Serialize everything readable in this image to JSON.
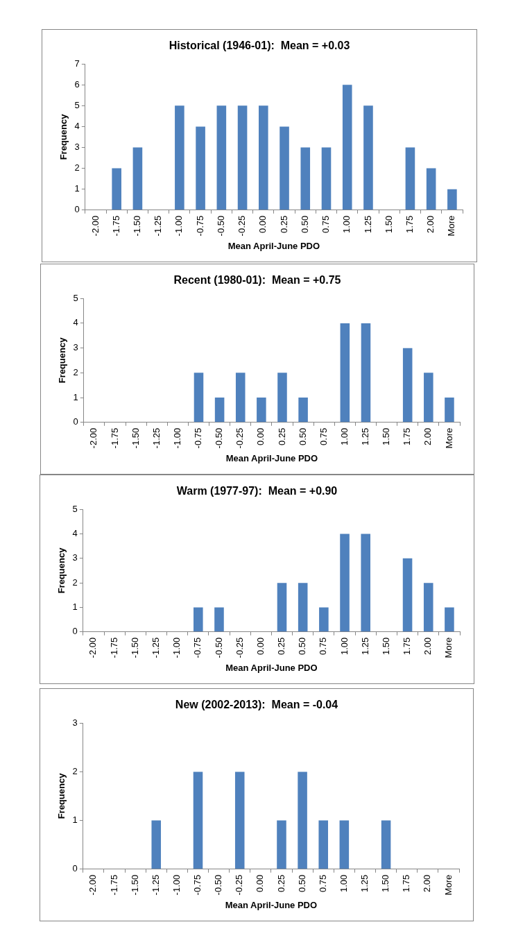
{
  "chart_data": [
    {
      "type": "bar",
      "title": "Historical (1946-01):  Mean = +0.03",
      "xlabel": "Mean April-June PDO",
      "ylabel": "Frequency",
      "categories": [
        "-2.00",
        "-1.75",
        "-1.50",
        "-1.25",
        "-1.00",
        "-0.75",
        "-0.50",
        "-0.25",
        "0.00",
        "0.25",
        "0.50",
        "0.75",
        "1.00",
        "1.25",
        "1.50",
        "1.75",
        "2.00",
        "More"
      ],
      "values": [
        0,
        2,
        3,
        0,
        5,
        4,
        5,
        5,
        5,
        4,
        3,
        3,
        6,
        5,
        0,
        3,
        2,
        1
      ],
      "color": "#4f81bd",
      "ylim": [
        0,
        7
      ],
      "yticks": [
        0,
        1,
        2,
        3,
        4,
        5,
        6,
        7
      ]
    },
    {
      "type": "bar",
      "title": "Recent (1980-01):  Mean = +0.75",
      "xlabel": "Mean April-June PDO",
      "ylabel": "Frequency",
      "categories": [
        "-2.00",
        "-1.75",
        "-1.50",
        "-1.25",
        "-1.00",
        "-0.75",
        "-0.50",
        "-0.25",
        "0.00",
        "0.25",
        "0.50",
        "0.75",
        "1.00",
        "1.25",
        "1.50",
        "1.75",
        "2.00",
        "More"
      ],
      "values": [
        0,
        0,
        0,
        0,
        0,
        2,
        1,
        2,
        1,
        2,
        1,
        0,
        4,
        4,
        0,
        3,
        2,
        1
      ],
      "color": "#4f81bd",
      "ylim": [
        0,
        5
      ],
      "yticks": [
        0,
        1,
        2,
        3,
        4,
        5
      ]
    },
    {
      "type": "bar",
      "title": "Warm (1977-97):  Mean = +0.90",
      "xlabel": "Mean April-June PDO",
      "ylabel": "Frequency",
      "categories": [
        "-2.00",
        "-1.75",
        "-1.50",
        "-1.25",
        "-1.00",
        "-0.75",
        "-0.50",
        "-0.25",
        "0.00",
        "0.25",
        "0.50",
        "0.75",
        "1.00",
        "1.25",
        "1.50",
        "1.75",
        "2.00",
        "More"
      ],
      "values": [
        0,
        0,
        0,
        0,
        0,
        1,
        1,
        0,
        0,
        2,
        2,
        1,
        4,
        4,
        0,
        3,
        2,
        1
      ],
      "color": "#4f81bd",
      "ylim": [
        0,
        5
      ],
      "yticks": [
        0,
        1,
        2,
        3,
        4,
        5
      ]
    },
    {
      "type": "bar",
      "title": "New (2002-2013):  Mean = -0.04",
      "xlabel": "Mean April-June PDO",
      "ylabel": "Frequency",
      "categories": [
        "-2.00",
        "-1.75",
        "-1.50",
        "-1.25",
        "-1.00",
        "-0.75",
        "-0.50",
        "-0.25",
        "0.00",
        "0.25",
        "0.50",
        "0.75",
        "1.00",
        "1.25",
        "1.50",
        "1.75",
        "2.00",
        "More"
      ],
      "values": [
        0,
        0,
        0,
        1,
        0,
        2,
        0,
        2,
        0,
        1,
        2,
        1,
        1,
        0,
        1,
        0,
        0,
        0
      ],
      "color": "#4f81bd",
      "ylim": [
        0,
        3
      ],
      "yticks": [
        0,
        1,
        2,
        3
      ]
    }
  ]
}
